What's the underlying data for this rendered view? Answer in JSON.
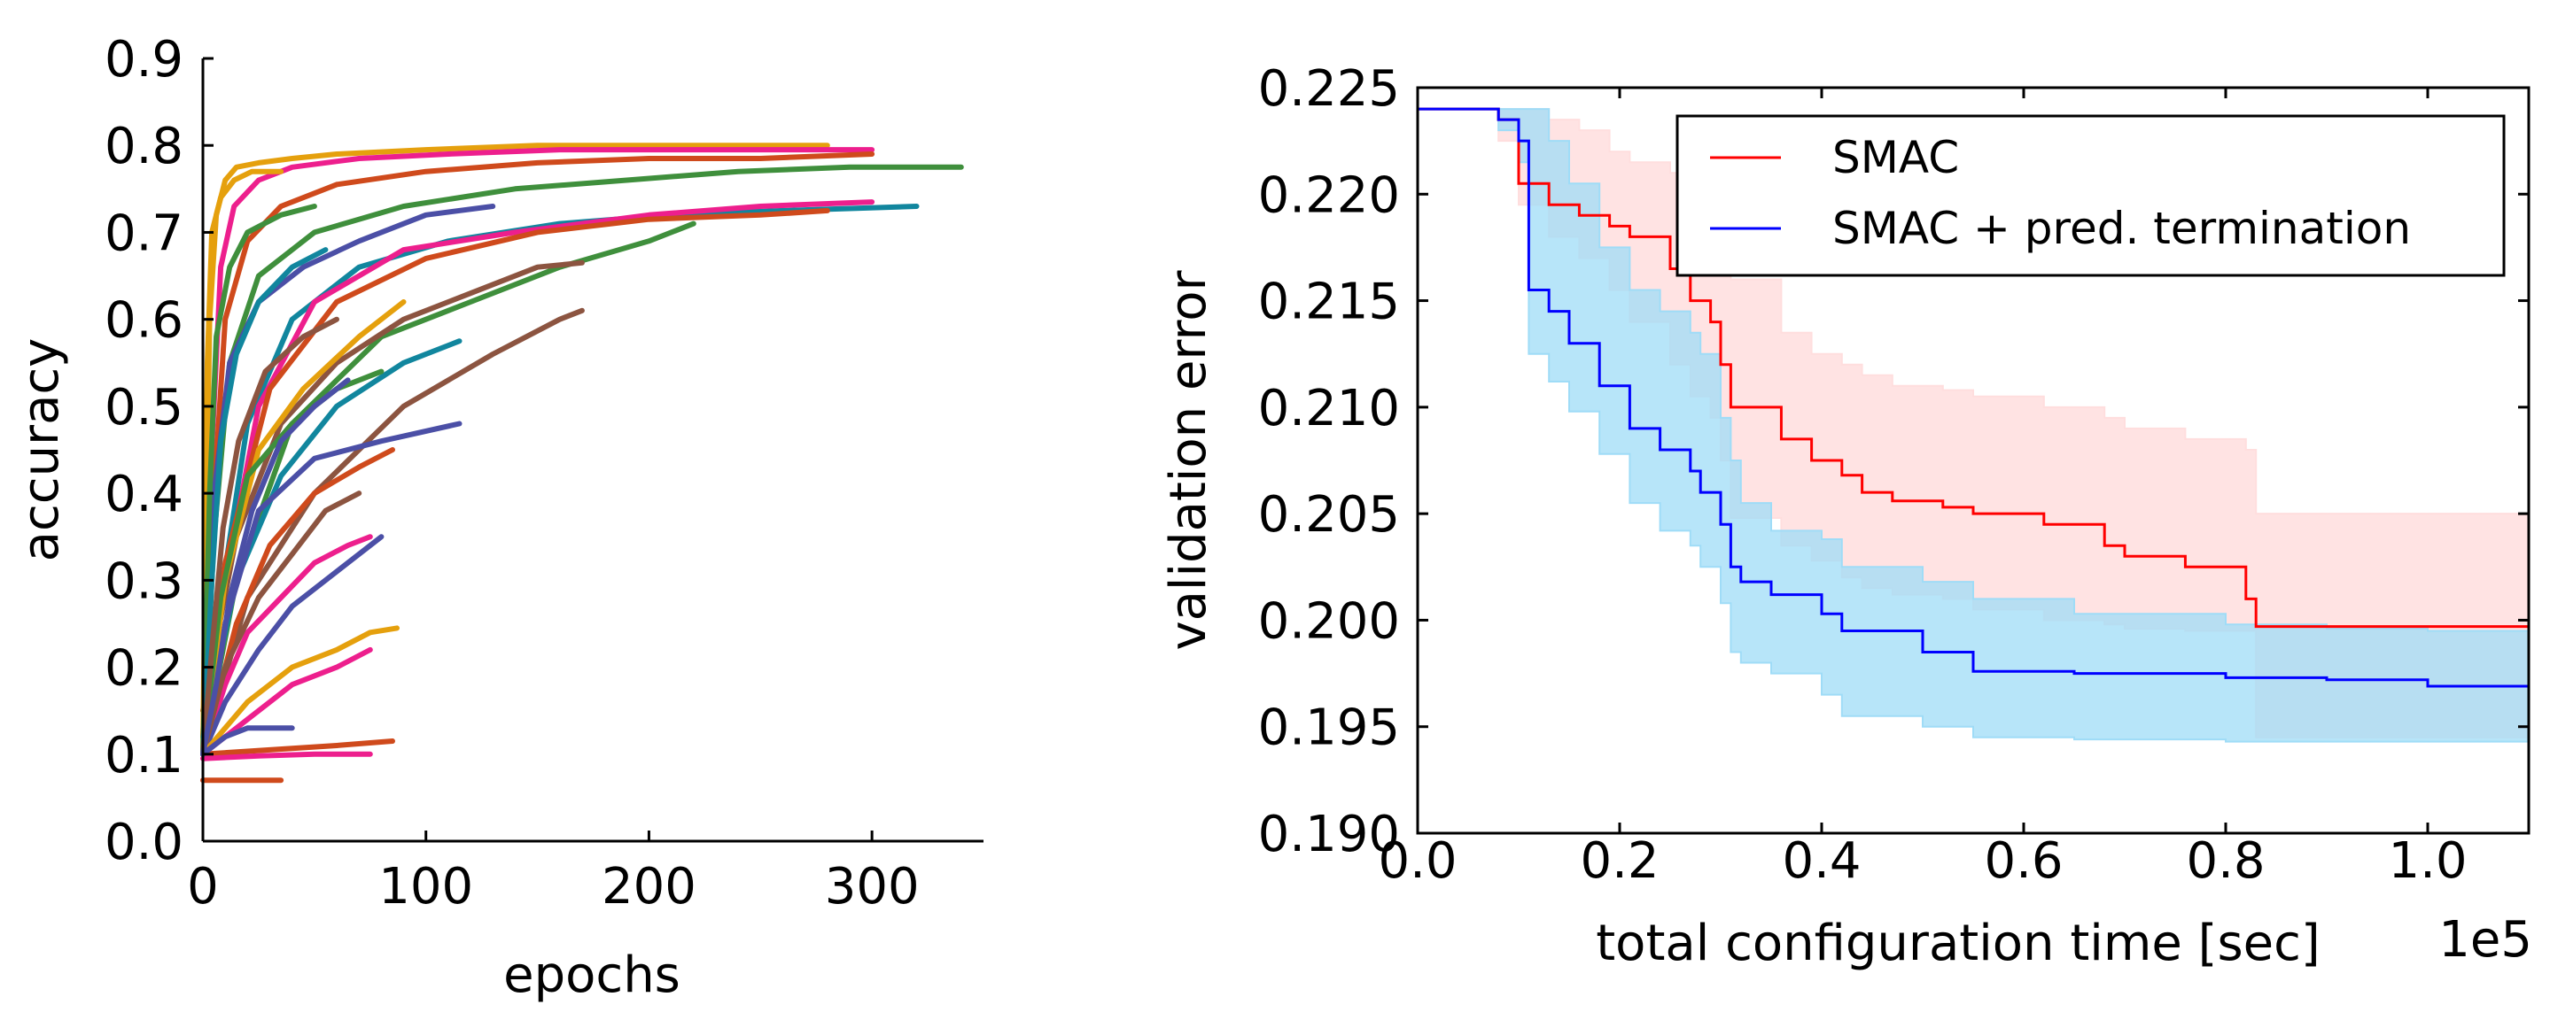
{
  "chart_data": [
    {
      "type": "line",
      "title": "",
      "xlabel": "epochs",
      "ylabel": "accuracy",
      "xlim": [
        0,
        350
      ],
      "ylim": [
        0.0,
        0.9
      ],
      "x_ticks": [
        0,
        100,
        200,
        300
      ],
      "y_ticks": [
        0.0,
        0.1,
        0.2,
        0.3,
        0.4,
        0.5,
        0.6,
        0.7,
        0.8,
        0.9
      ],
      "x_tick_labels": [
        "0",
        "100",
        "200",
        "300"
      ],
      "y_tick_labels": [
        "0.0",
        "0.1",
        "0.2",
        "0.3",
        "0.4",
        "0.5",
        "0.6",
        "0.7",
        "0.8",
        "0.9"
      ],
      "spines": "left-bottom",
      "series_note": "many learning curves (one per configuration)",
      "series": [
        {
          "color": "#e5a00d",
          "x": [
            0,
            3,
            6,
            10,
            15,
            25,
            40,
            60,
            100,
            150,
            200,
            250,
            280
          ],
          "values": [
            0.1,
            0.6,
            0.72,
            0.76,
            0.775,
            0.78,
            0.785,
            0.79,
            0.795,
            0.8,
            0.8,
            0.8,
            0.8
          ]
        },
        {
          "color": "#ed1f8d",
          "x": [
            0,
            4,
            8,
            14,
            25,
            40,
            70,
            110,
            160,
            210,
            260,
            300
          ],
          "values": [
            0.1,
            0.45,
            0.66,
            0.73,
            0.76,
            0.775,
            0.785,
            0.79,
            0.795,
            0.795,
            0.795,
            0.795
          ]
        },
        {
          "color": "#cf4a1c",
          "x": [
            0,
            5,
            10,
            20,
            35,
            60,
            100,
            150,
            200,
            250,
            300
          ],
          "values": [
            0.12,
            0.4,
            0.6,
            0.69,
            0.73,
            0.755,
            0.77,
            0.78,
            0.785,
            0.785,
            0.79
          ]
        },
        {
          "color": "#3f8f3c",
          "x": [
            0,
            5,
            12,
            25,
            50,
            90,
            140,
            190,
            240,
            290,
            340
          ],
          "values": [
            0.1,
            0.35,
            0.55,
            0.65,
            0.7,
            0.73,
            0.75,
            0.76,
            0.77,
            0.775,
            0.775
          ]
        },
        {
          "color": "#11869e",
          "x": [
            0,
            8,
            20,
            40,
            70,
            110,
            160,
            210,
            260,
            320
          ],
          "values": [
            0.1,
            0.28,
            0.48,
            0.6,
            0.66,
            0.69,
            0.71,
            0.72,
            0.725,
            0.73
          ]
        },
        {
          "color": "#ed1f8d",
          "x": [
            0,
            10,
            25,
            50,
            90,
            140,
            200,
            250,
            300
          ],
          "values": [
            0.1,
            0.3,
            0.5,
            0.62,
            0.68,
            0.7,
            0.72,
            0.73,
            0.735
          ]
        },
        {
          "color": "#cf4a1c",
          "x": [
            0,
            10,
            30,
            60,
            100,
            150,
            200,
            250,
            280
          ],
          "values": [
            0.12,
            0.32,
            0.52,
            0.62,
            0.67,
            0.7,
            0.715,
            0.72,
            0.725
          ]
        },
        {
          "color": "#3f8f3c",
          "x": [
            0,
            15,
            40,
            80,
            120,
            160,
            200,
            220
          ],
          "values": [
            0.1,
            0.3,
            0.48,
            0.58,
            0.62,
            0.66,
            0.69,
            0.71
          ]
        },
        {
          "color": "#8c5440",
          "x": [
            0,
            20,
            50,
            90,
            130,
            160,
            170
          ],
          "values": [
            0.1,
            0.28,
            0.4,
            0.5,
            0.56,
            0.6,
            0.61
          ]
        },
        {
          "color": "#8c5440",
          "x": [
            0,
            15,
            35,
            60,
            90,
            120,
            150,
            170
          ],
          "values": [
            0.15,
            0.35,
            0.48,
            0.55,
            0.6,
            0.63,
            0.66,
            0.665
          ]
        },
        {
          "color": "#11869e",
          "x": [
            0,
            15,
            35,
            60,
            90,
            115
          ],
          "values": [
            0.12,
            0.3,
            0.42,
            0.5,
            0.55,
            0.575
          ]
        },
        {
          "color": "#4b4fa6",
          "x": [
            0,
            10,
            25,
            50,
            80,
            115
          ],
          "values": [
            0.1,
            0.25,
            0.38,
            0.44,
            0.46,
            0.48
          ]
        },
        {
          "color": "#4b4fa6",
          "x": [
            0,
            5,
            12,
            25,
            45,
            70,
            100,
            130
          ],
          "values": [
            0.1,
            0.4,
            0.55,
            0.62,
            0.66,
            0.69,
            0.72,
            0.73
          ]
        },
        {
          "color": "#e5a00d",
          "x": [
            0,
            10,
            25,
            45,
            70,
            90
          ],
          "values": [
            0.1,
            0.3,
            0.45,
            0.52,
            0.58,
            0.62
          ]
        },
        {
          "color": "#3f8f3c",
          "x": [
            0,
            8,
            20,
            40,
            60,
            80
          ],
          "values": [
            0.1,
            0.28,
            0.42,
            0.48,
            0.52,
            0.54
          ]
        },
        {
          "color": "#ed1f8d",
          "x": [
            0,
            10,
            20,
            35,
            50,
            65,
            75
          ],
          "values": [
            0.1,
            0.18,
            0.24,
            0.28,
            0.32,
            0.34,
            0.35
          ]
        },
        {
          "color": "#4b4fa6",
          "x": [
            0,
            10,
            25,
            40,
            60,
            80
          ],
          "values": [
            0.1,
            0.16,
            0.22,
            0.27,
            0.31,
            0.35
          ]
        },
        {
          "color": "#cf4a1c",
          "x": [
            0,
            15,
            30,
            50,
            70,
            85
          ],
          "values": [
            0.1,
            0.25,
            0.34,
            0.4,
            0.43,
            0.45
          ]
        },
        {
          "color": "#8c5440",
          "x": [
            0,
            10,
            25,
            40,
            55,
            70
          ],
          "values": [
            0.1,
            0.2,
            0.28,
            0.33,
            0.38,
            0.4
          ]
        },
        {
          "color": "#e5a00d",
          "x": [
            0,
            20,
            40,
            60,
            75,
            87
          ],
          "values": [
            0.1,
            0.16,
            0.2,
            0.22,
            0.24,
            0.245
          ]
        },
        {
          "color": "#ed1f8d",
          "x": [
            0,
            20,
            40,
            60,
            75
          ],
          "values": [
            0.1,
            0.14,
            0.18,
            0.2,
            0.22
          ]
        },
        {
          "color": "#cf4a1c",
          "x": [
            0,
            30,
            60,
            85
          ],
          "values": [
            0.1,
            0.105,
            0.11,
            0.115
          ]
        },
        {
          "color": "#ed1f8d",
          "x": [
            0,
            25,
            50,
            75
          ],
          "values": [
            0.095,
            0.098,
            0.1,
            0.1
          ]
        },
        {
          "color": "#cf4a1c",
          "x": [
            0,
            10,
            20,
            35
          ],
          "values": [
            0.07,
            0.07,
            0.07,
            0.07
          ]
        },
        {
          "color": "#4b4fa6",
          "x": [
            0,
            10,
            20,
            30,
            40
          ],
          "values": [
            0.1,
            0.12,
            0.13,
            0.13,
            0.13
          ]
        },
        {
          "color": "#e5a00d",
          "x": [
            0,
            2,
            4,
            8,
            14,
            22,
            35
          ],
          "values": [
            0.1,
            0.55,
            0.7,
            0.74,
            0.76,
            0.77,
            0.77
          ]
        },
        {
          "color": "#3f8f3c",
          "x": [
            0,
            3,
            6,
            12,
            20,
            35,
            50
          ],
          "values": [
            0.1,
            0.4,
            0.58,
            0.66,
            0.7,
            0.72,
            0.73
          ]
        },
        {
          "color": "#11869e",
          "x": [
            0,
            4,
            8,
            15,
            25,
            40,
            55
          ],
          "values": [
            0.1,
            0.3,
            0.46,
            0.56,
            0.62,
            0.66,
            0.68
          ]
        },
        {
          "color": "#8c5440",
          "x": [
            0,
            4,
            9,
            16,
            28,
            45,
            60
          ],
          "values": [
            0.1,
            0.22,
            0.36,
            0.46,
            0.54,
            0.58,
            0.6
          ]
        },
        {
          "color": "#4b4fa6",
          "x": [
            0,
            6,
            12,
            22,
            35,
            50,
            65
          ],
          "values": [
            0.1,
            0.18,
            0.28,
            0.38,
            0.46,
            0.5,
            0.53
          ]
        }
      ]
    },
    {
      "type": "line",
      "title": "",
      "xlabel": "total configuration time [sec]",
      "ylabel": "validation error",
      "x_offset_label": "1e5",
      "xlim": [
        0.0,
        1.1
      ],
      "ylim": [
        0.19,
        0.225
      ],
      "x_ticks": [
        0.0,
        0.2,
        0.4,
        0.6,
        0.8,
        1.0
      ],
      "y_ticks": [
        0.19,
        0.195,
        0.2,
        0.205,
        0.21,
        0.215,
        0.22,
        0.225
      ],
      "x_tick_labels": [
        "0.0",
        "0.2",
        "0.4",
        "0.6",
        "0.8",
        "1.0"
      ],
      "y_tick_labels": [
        "0.190",
        "0.195",
        "0.200",
        "0.205",
        "0.210",
        "0.215",
        "0.220",
        "0.225"
      ],
      "legend_position": "top-right",
      "legend": [
        "SMAC",
        "SMAC + pred. termination"
      ],
      "series": [
        {
          "name": "SMAC",
          "color": "#ff0000",
          "band_color": "#ffdede",
          "x": [
            0.0,
            0.08,
            0.1,
            0.13,
            0.16,
            0.19,
            0.21,
            0.25,
            0.27,
            0.29,
            0.3,
            0.31,
            0.36,
            0.39,
            0.42,
            0.44,
            0.47,
            0.52,
            0.55,
            0.62,
            0.68,
            0.7,
            0.76,
            0.82,
            0.83,
            1.1
          ],
          "values": [
            0.224,
            0.2235,
            0.2205,
            0.2195,
            0.219,
            0.2185,
            0.218,
            0.2165,
            0.215,
            0.214,
            0.212,
            0.21,
            0.2085,
            0.2075,
            0.2068,
            0.206,
            0.2056,
            0.2053,
            0.205,
            0.2045,
            0.2035,
            0.203,
            0.2025,
            0.201,
            0.1997,
            0.1997
          ],
          "upper": [
            0.224,
            0.224,
            0.224,
            0.2235,
            0.223,
            0.222,
            0.2215,
            0.221,
            0.2205,
            0.22,
            0.218,
            0.216,
            0.2135,
            0.2125,
            0.212,
            0.2115,
            0.211,
            0.2108,
            0.2105,
            0.21,
            0.2095,
            0.209,
            0.2085,
            0.208,
            0.205,
            0.205
          ],
          "lower": [
            0.224,
            0.2225,
            0.2195,
            0.218,
            0.217,
            0.2155,
            0.214,
            0.212,
            0.2105,
            0.2095,
            0.2075,
            0.2048,
            0.2035,
            0.2028,
            0.202,
            0.2015,
            0.2012,
            0.201,
            0.2005,
            0.2,
            0.1998,
            0.1996,
            0.1995,
            0.1995,
            0.1945,
            0.1945
          ]
        },
        {
          "name": "SMAC + pred. termination",
          "color": "#0000ff",
          "band_color": "#9fdcf7",
          "x": [
            0.0,
            0.05,
            0.08,
            0.1,
            0.11,
            0.13,
            0.15,
            0.18,
            0.21,
            0.24,
            0.27,
            0.28,
            0.3,
            0.31,
            0.32,
            0.35,
            0.4,
            0.42,
            0.5,
            0.55,
            0.65,
            0.8,
            0.9,
            1.0,
            1.1
          ],
          "values": [
            0.224,
            0.224,
            0.2235,
            0.2225,
            0.2155,
            0.2145,
            0.213,
            0.211,
            0.209,
            0.208,
            0.207,
            0.206,
            0.2045,
            0.2025,
            0.2018,
            0.2012,
            0.2003,
            0.1995,
            0.1985,
            0.1976,
            0.1975,
            0.1973,
            0.1972,
            0.1969,
            0.1969
          ],
          "upper": [
            0.224,
            0.224,
            0.224,
            0.224,
            0.224,
            0.2225,
            0.2205,
            0.2175,
            0.2155,
            0.2145,
            0.2135,
            0.2125,
            0.2095,
            0.2075,
            0.2055,
            0.2042,
            0.2038,
            0.2025,
            0.2018,
            0.201,
            0.2003,
            0.1998,
            0.1996,
            0.1995,
            0.1995
          ],
          "lower": [
            0.224,
            0.224,
            0.223,
            0.2215,
            0.2125,
            0.2112,
            0.2098,
            0.2078,
            0.2055,
            0.2042,
            0.2035,
            0.2025,
            0.2008,
            0.1985,
            0.198,
            0.1975,
            0.1965,
            0.1955,
            0.195,
            0.1945,
            0.1944,
            0.1943,
            0.1943,
            0.1943,
            0.1943
          ]
        }
      ]
    }
  ]
}
